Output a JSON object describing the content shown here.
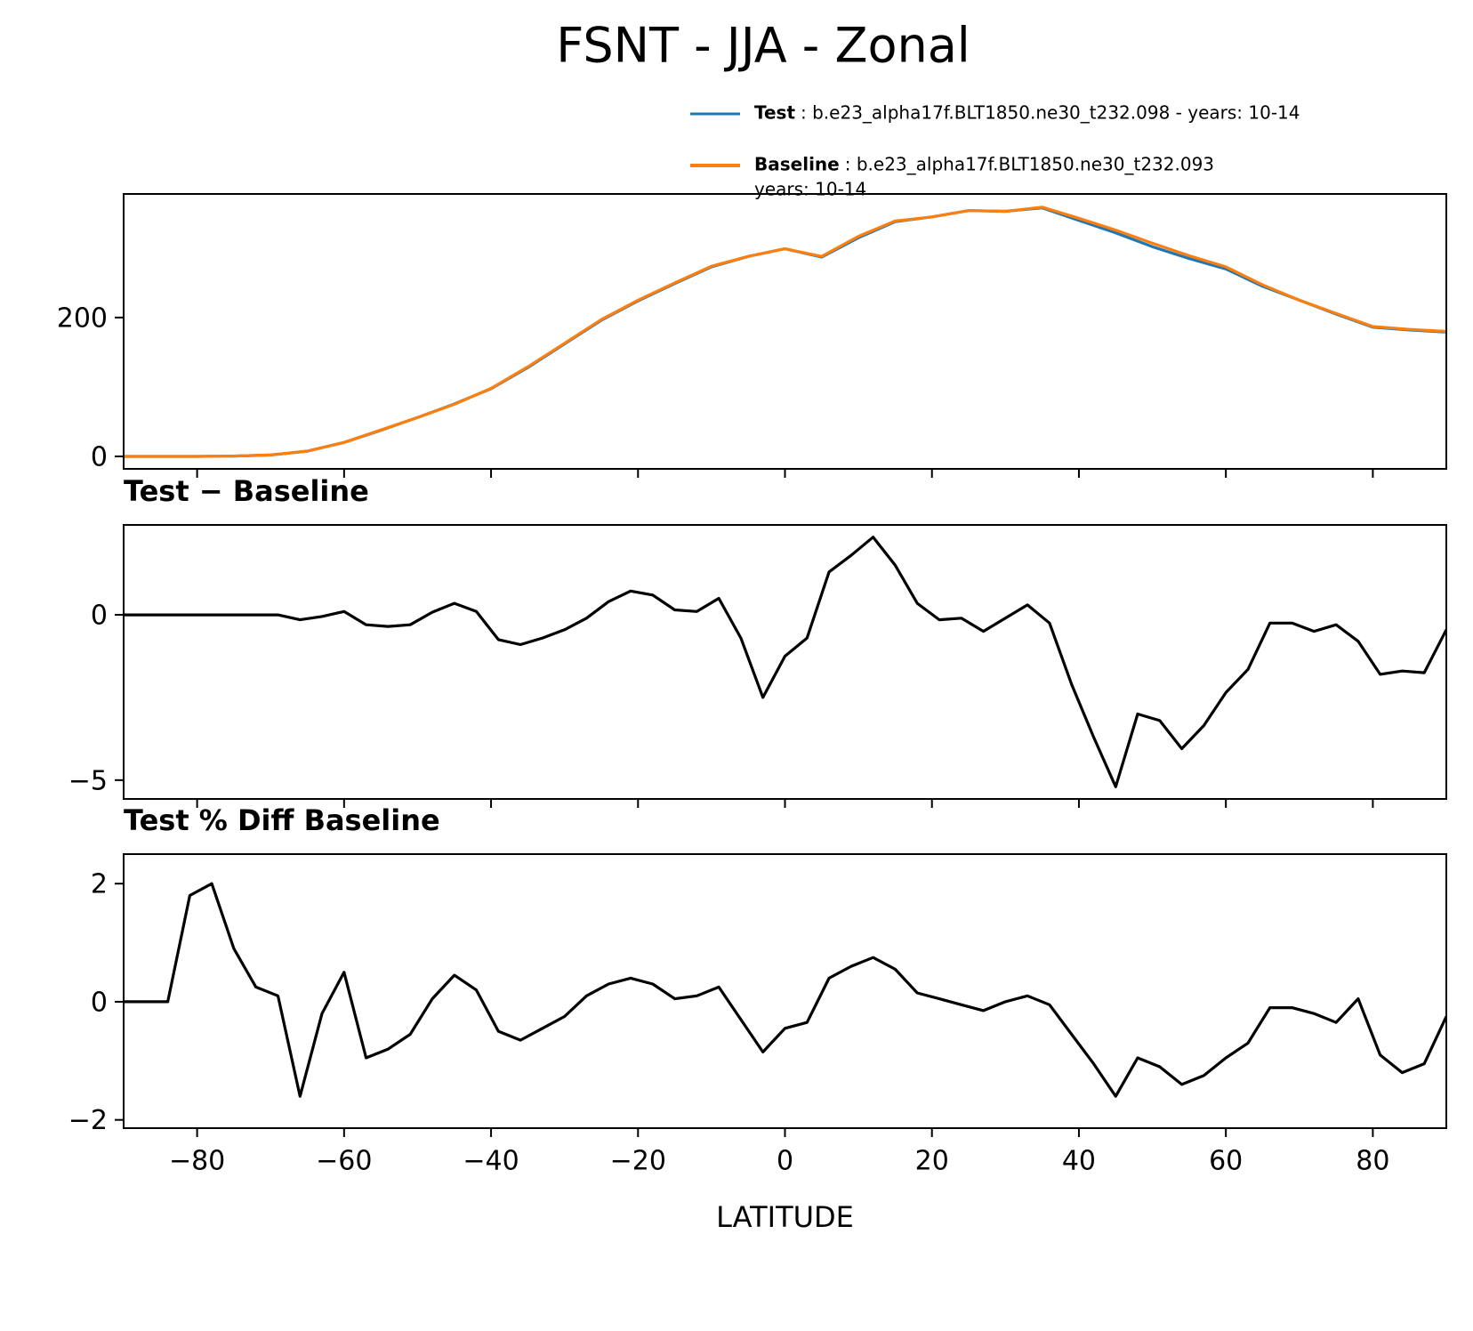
{
  "title": "FSNT - JJA - Zonal",
  "chart_data": [
    {
      "type": "line",
      "x": [
        -90,
        -85,
        -80,
        -75,
        -70,
        -65,
        -60,
        -55,
        -50,
        -45,
        -40,
        -35,
        -30,
        -25,
        -20,
        -15,
        -10,
        -5,
        0,
        5,
        10,
        15,
        20,
        25,
        30,
        35,
        40,
        45,
        50,
        55,
        60,
        65,
        70,
        75,
        80,
        85,
        90
      ],
      "series": [
        {
          "name": "Test",
          "details": [
            ": b.e23_alpha17f.BLT1850.ne30_t232.098 - years: 10-14"
          ],
          "color": "#1f77b4",
          "values": [
            0,
            0,
            0,
            0.5,
            2,
            7.5,
            20,
            37.5,
            56,
            75.5,
            97.5,
            128,
            162,
            196,
            224,
            249,
            273,
            288,
            299,
            287,
            315,
            338,
            345,
            354,
            353,
            358,
            340,
            322,
            302,
            285,
            270,
            245,
            225,
            205,
            186,
            182,
            179
          ]
        },
        {
          "name": "Baseline",
          "details": [
            ": b.e23_alpha17f.BLT1850.ne30_t232.093",
            "years: 10-14"
          ],
          "color": "#ff7f0e",
          "values": [
            0,
            0,
            0,
            0.5,
            2,
            7.6,
            20,
            38,
            56,
            75,
            98,
            129,
            163,
            197,
            225,
            250,
            274,
            288,
            299,
            288,
            317,
            339,
            345,
            354,
            353,
            359,
            343,
            326,
            307,
            289,
            273,
            247,
            225,
            206,
            187,
            183,
            180
          ]
        }
      ],
      "xlim": [
        -90,
        90
      ],
      "ylim": [
        -18,
        378
      ],
      "yticks": [
        0,
        200
      ],
      "grid": false
    },
    {
      "type": "line",
      "title": "Test − Baseline",
      "x": [
        -90,
        -87,
        -84,
        -81,
        -78,
        -75,
        -72,
        -69,
        -66,
        -63,
        -60,
        -57,
        -54,
        -51,
        -48,
        -45,
        -42,
        -39,
        -36,
        -33,
        -30,
        -27,
        -24,
        -21,
        -18,
        -15,
        -12,
        -9,
        -6,
        -3,
        0,
        3,
        6,
        9,
        12,
        15,
        18,
        21,
        24,
        27,
        30,
        33,
        36,
        39,
        42,
        45,
        48,
        51,
        54,
        57,
        60,
        63,
        66,
        69,
        72,
        75,
        78,
        81,
        84,
        87,
        90
      ],
      "values": [
        0,
        0,
        0,
        0,
        0,
        0,
        0,
        0,
        -0.15,
        -0.05,
        0.1,
        -0.3,
        -0.35,
        -0.3,
        0.08,
        0.35,
        0.1,
        -0.75,
        -0.9,
        -0.7,
        -0.45,
        -0.1,
        0.4,
        0.72,
        0.6,
        0.15,
        0.1,
        0.5,
        -0.7,
        -2.5,
        -1.25,
        -0.7,
        1.3,
        1.8,
        2.35,
        1.5,
        0.35,
        -0.15,
        -0.1,
        -0.5,
        -0.1,
        0.3,
        -0.25,
        -2.1,
        -3.7,
        -5.2,
        -3.0,
        -3.2,
        -4.05,
        -3.35,
        -2.35,
        -1.65,
        -0.25,
        -0.25,
        -0.5,
        -0.3,
        -0.8,
        -1.8,
        -1.7,
        -1.75,
        -0.45
      ],
      "color": "#000000",
      "xlim": [
        -90,
        90
      ],
      "ylim": [
        -5.57,
        2.72
      ],
      "yticks": [
        {
          "value": -5,
          "label": "−5"
        },
        0
      ]
    },
    {
      "type": "line",
      "title": "Test % Diff Baseline",
      "xlabel": "LATITUDE",
      "x": [
        -90,
        -87,
        -84,
        -81,
        -78,
        -75,
        -72,
        -69,
        -66,
        -63,
        -60,
        -57,
        -54,
        -51,
        -48,
        -45,
        -42,
        -39,
        -36,
        -33,
        -30,
        -27,
        -24,
        -21,
        -18,
        -15,
        -12,
        -9,
        -6,
        -3,
        0,
        3,
        6,
        9,
        12,
        15,
        18,
        21,
        24,
        27,
        30,
        33,
        36,
        39,
        42,
        45,
        48,
        51,
        54,
        57,
        60,
        63,
        66,
        69,
        72,
        75,
        78,
        81,
        84,
        87,
        90
      ],
      "values": [
        0,
        0,
        0,
        1.8,
        2.0,
        0.9,
        0.25,
        0.1,
        -1.6,
        -0.2,
        0.5,
        -0.95,
        -0.8,
        -0.55,
        0.05,
        0.45,
        0.2,
        -0.5,
        -0.65,
        -0.45,
        -0.25,
        0.1,
        0.3,
        0.4,
        0.3,
        0.05,
        0.1,
        0.25,
        -0.3,
        -0.85,
        -0.45,
        -0.35,
        0.4,
        0.6,
        0.75,
        0.55,
        0.15,
        0.05,
        -0.05,
        -0.15,
        0,
        0.1,
        -0.05,
        -0.55,
        -1.05,
        -1.6,
        -0.95,
        -1.1,
        -1.4,
        -1.25,
        -0.95,
        -0.7,
        -0.1,
        -0.1,
        -0.2,
        -0.35,
        0.05,
        -0.9,
        -1.2,
        -1.05,
        -0.25
      ],
      "color": "#000000",
      "xlim": [
        -90,
        90
      ],
      "ylim": [
        -2.14,
        2.5
      ],
      "yticks": [
        {
          "value": -2,
          "label": "−2"
        },
        0,
        2
      ],
      "xticks": [
        {
          "value": -80,
          "label": "−80"
        },
        {
          "value": -60,
          "label": "−60"
        },
        {
          "value": -40,
          "label": "−40"
        },
        {
          "value": -20,
          "label": "−20"
        },
        0,
        20,
        40,
        60,
        80
      ]
    }
  ]
}
